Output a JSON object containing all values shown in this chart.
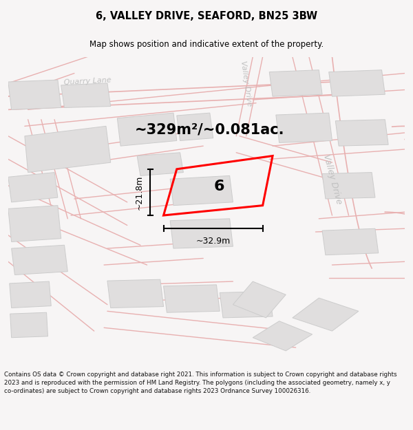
{
  "title": "6, VALLEY DRIVE, SEAFORD, BN25 3BW",
  "subtitle": "Map shows position and indicative extent of the property.",
  "area_text": "~329m²/~0.081ac.",
  "dim_width": "~32.9m",
  "dim_height": "~21.8m",
  "plot_number": "6",
  "footer": "Contains OS data © Crown copyright and database right 2021. This information is subject to Crown copyright and database rights 2023 and is reproduced with the permission of HM Land Registry. The polygons (including the associated geometry, namely x, y co-ordinates) are subject to Crown copyright and database rights 2023 Ordnance Survey 100026316.",
  "bg_color": "#f7f5f5",
  "map_bg": "#f7f5f5",
  "road_line_color": "#e8b0b0",
  "building_color": "#e0dede",
  "building_edge": "#cccccc",
  "road_label_color": "#c0c0c0",
  "plot_color": "#ff0000",
  "title_color": "#000000",
  "footer_color": "#111111"
}
